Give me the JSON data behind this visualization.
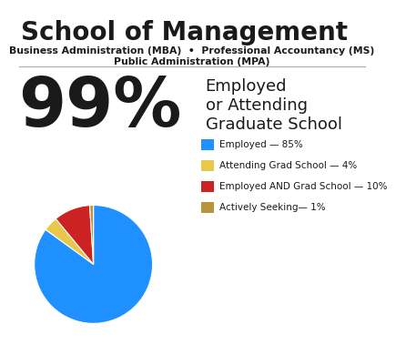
{
  "title": "School of Management",
  "subtitle_line1": "Business Administration (MBA)  •  Professional Accountancy (MS)",
  "subtitle_line2": "Public Administration (MPA)",
  "big_percent": "99%",
  "big_percent_label_line1": "Employed",
  "big_percent_label_line2": "or Attending",
  "big_percent_label_line3": "Graduate School",
  "pie_values": [
    85,
    4,
    10,
    1
  ],
  "pie_colors": [
    "#1e90ff",
    "#e8c84a",
    "#cc2222",
    "#b8943f"
  ],
  "legend_labels": [
    "Employed — 85%",
    "Attending Grad School — 4%",
    "Employed AND Grad School — 10%",
    "Actively Seeking— 1%"
  ],
  "background_color": "#ffffff",
  "text_color": "#1a1a1a"
}
